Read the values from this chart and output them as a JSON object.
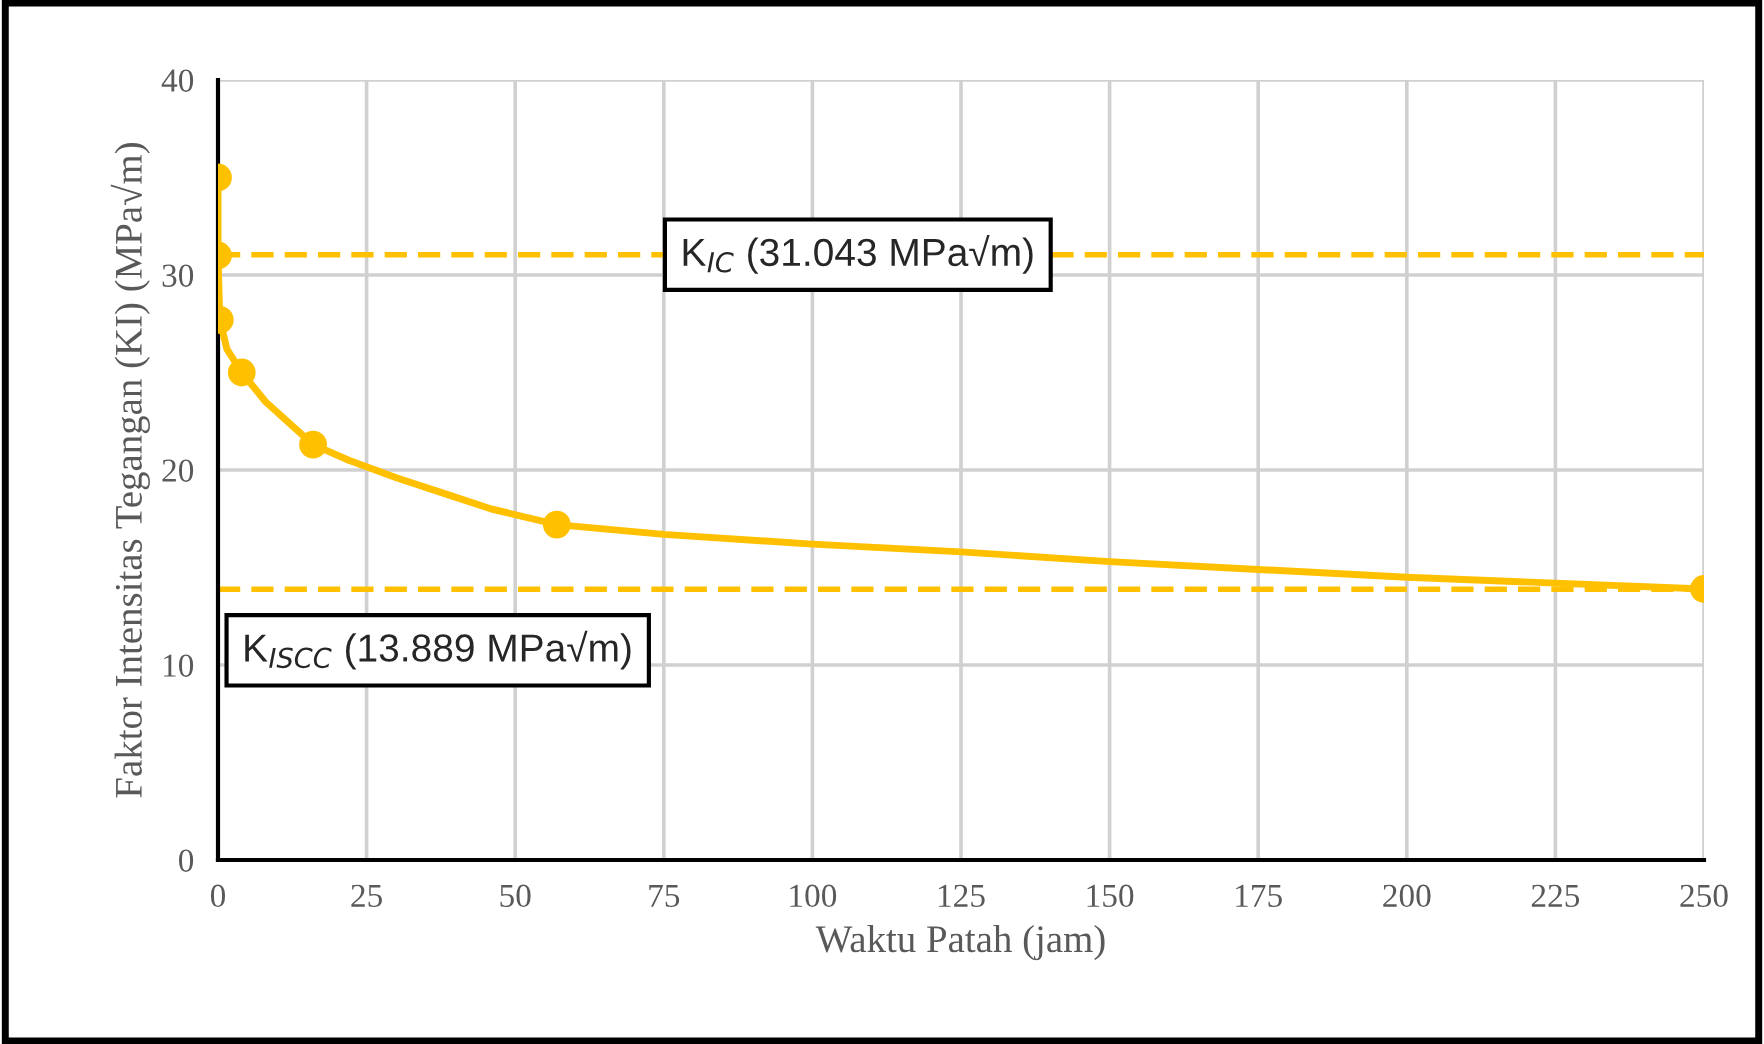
{
  "chart_data": {
    "type": "line",
    "xlabel": "Waktu Patah (jam)",
    "ylabel": "Faktor Intensitas Tegangan (KI) (MPa√m)",
    "series": [
      {
        "color": "#ffc000",
        "marker": "none",
        "x": [
          0,
          0,
          0.3,
          1.5,
          4,
          8,
          16,
          22,
          30,
          38,
          46,
          57,
          75,
          100,
          125,
          150,
          175,
          200,
          225,
          250
        ],
        "values": [
          35,
          31.0,
          27.7,
          26.2,
          25,
          23.5,
          21.3,
          20.5,
          19.6,
          18.8,
          18.0,
          17.2,
          16.7,
          16.2,
          15.8,
          15.3,
          14.9,
          14.5,
          14.2,
          13.9
        ]
      },
      {
        "type": "scatter",
        "color": "#ffc000",
        "marker": "circle",
        "x": [
          0,
          0,
          0.3,
          4,
          16,
          57,
          250
        ],
        "values": [
          35,
          31.0,
          27.7,
          25,
          21.3,
          17.2,
          13.9
        ]
      }
    ],
    "line_style": "solid",
    "xlim": [
      0,
      250
    ],
    "xticks": [
      0,
      25,
      50,
      75,
      100,
      125,
      150,
      175,
      200,
      225,
      250
    ],
    "ylim": [
      0,
      40
    ],
    "yticks": [
      0,
      10,
      20,
      30,
      40
    ],
    "grid": true,
    "ref_lines": [
      {
        "axis": "y",
        "value": 31.043,
        "label": "K$_{IC}$ (31.043 MPa√m)",
        "color": "#ffc000",
        "line_style": "dashed"
      },
      {
        "axis": "y",
        "value": 13.889,
        "label": "K$_{ISCC}$ (13.889 MPa√m)",
        "color": "#ffc000",
        "line_style": "dashed"
      }
    ]
  }
}
